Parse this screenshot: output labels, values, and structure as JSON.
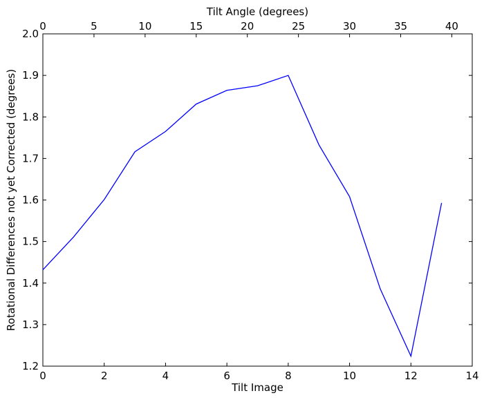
{
  "chart_data": {
    "type": "line",
    "xlabel": "Tilt Image",
    "x2label": "Tilt Angle (degrees)",
    "ylabel": "Rotational Differences not yet Corrected (degrees)",
    "xlim": [
      0,
      14
    ],
    "x2lim": [
      0,
      42
    ],
    "ylim": [
      1.2,
      2.0
    ],
    "xticks": [
      0,
      2,
      4,
      6,
      8,
      10,
      12,
      14
    ],
    "x2ticks": [
      0,
      5,
      10,
      15,
      20,
      25,
      30,
      35,
      40
    ],
    "yticks": [
      1.2,
      1.3,
      1.4,
      1.5,
      1.6,
      1.7,
      1.8,
      1.9,
      2.0
    ],
    "grid": false,
    "series": [
      {
        "color": "#0000ff",
        "x": [
          0,
          1,
          2,
          3,
          4,
          5,
          6,
          7,
          8,
          9,
          10,
          11,
          12,
          13
        ],
        "y": [
          1.432,
          1.511,
          1.601,
          1.716,
          1.765,
          1.831,
          1.864,
          1.875,
          1.9,
          1.733,
          1.608,
          1.386,
          1.224,
          1.593
        ]
      }
    ]
  }
}
